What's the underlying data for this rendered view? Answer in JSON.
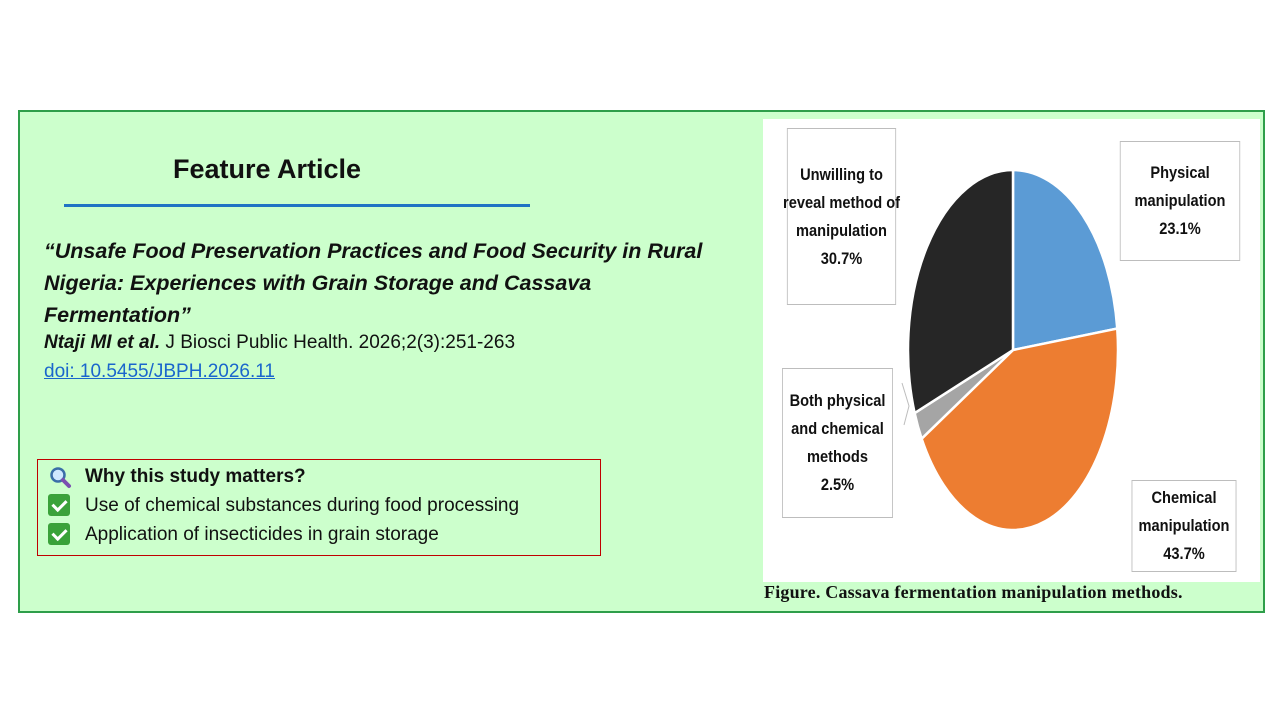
{
  "heading": "Feature Article",
  "article": {
    "title": "“Unsafe Food Preservation Practices and Food Security in Rural Nigeria: Experiences with Grain Storage and Cassava Fermentation”",
    "authors": "Ntaji MI et al.",
    "journal": " J Biosci Public Health. 2026;2(3):251-263",
    "doi": "doi: 10.5455/JBPH.2026.11"
  },
  "why": {
    "icon": "magnifier-icon",
    "title": "Why this study matters?",
    "points": [
      "Use of chemical substances during food processing",
      "Application of insecticides in grain storage"
    ]
  },
  "figure": {
    "caption": "Figure. Cassava fermentation manipulation methods."
  },
  "chart_data": {
    "type": "pie",
    "title": "",
    "start": "12 o'clock, clockwise",
    "slices": [
      {
        "label_lines": [
          "Physical",
          "manipulation",
          "23.1%"
        ],
        "value": 23.1,
        "color": "#5b9bd5"
      },
      {
        "label_lines": [
          "Chemical",
          "manipulation",
          "43.7%"
        ],
        "value": 43.7,
        "color": "#ed7d31"
      },
      {
        "label_lines": [
          "Both physical",
          "and chemical",
          "methods",
          "2.5%"
        ],
        "value": 2.5,
        "color": "#a5a5a5"
      },
      {
        "label_lines": [
          "Unwilling to",
          "reveal method of",
          "manipulation",
          "30.7%"
        ],
        "value": 30.7,
        "color": "#262626"
      }
    ]
  }
}
